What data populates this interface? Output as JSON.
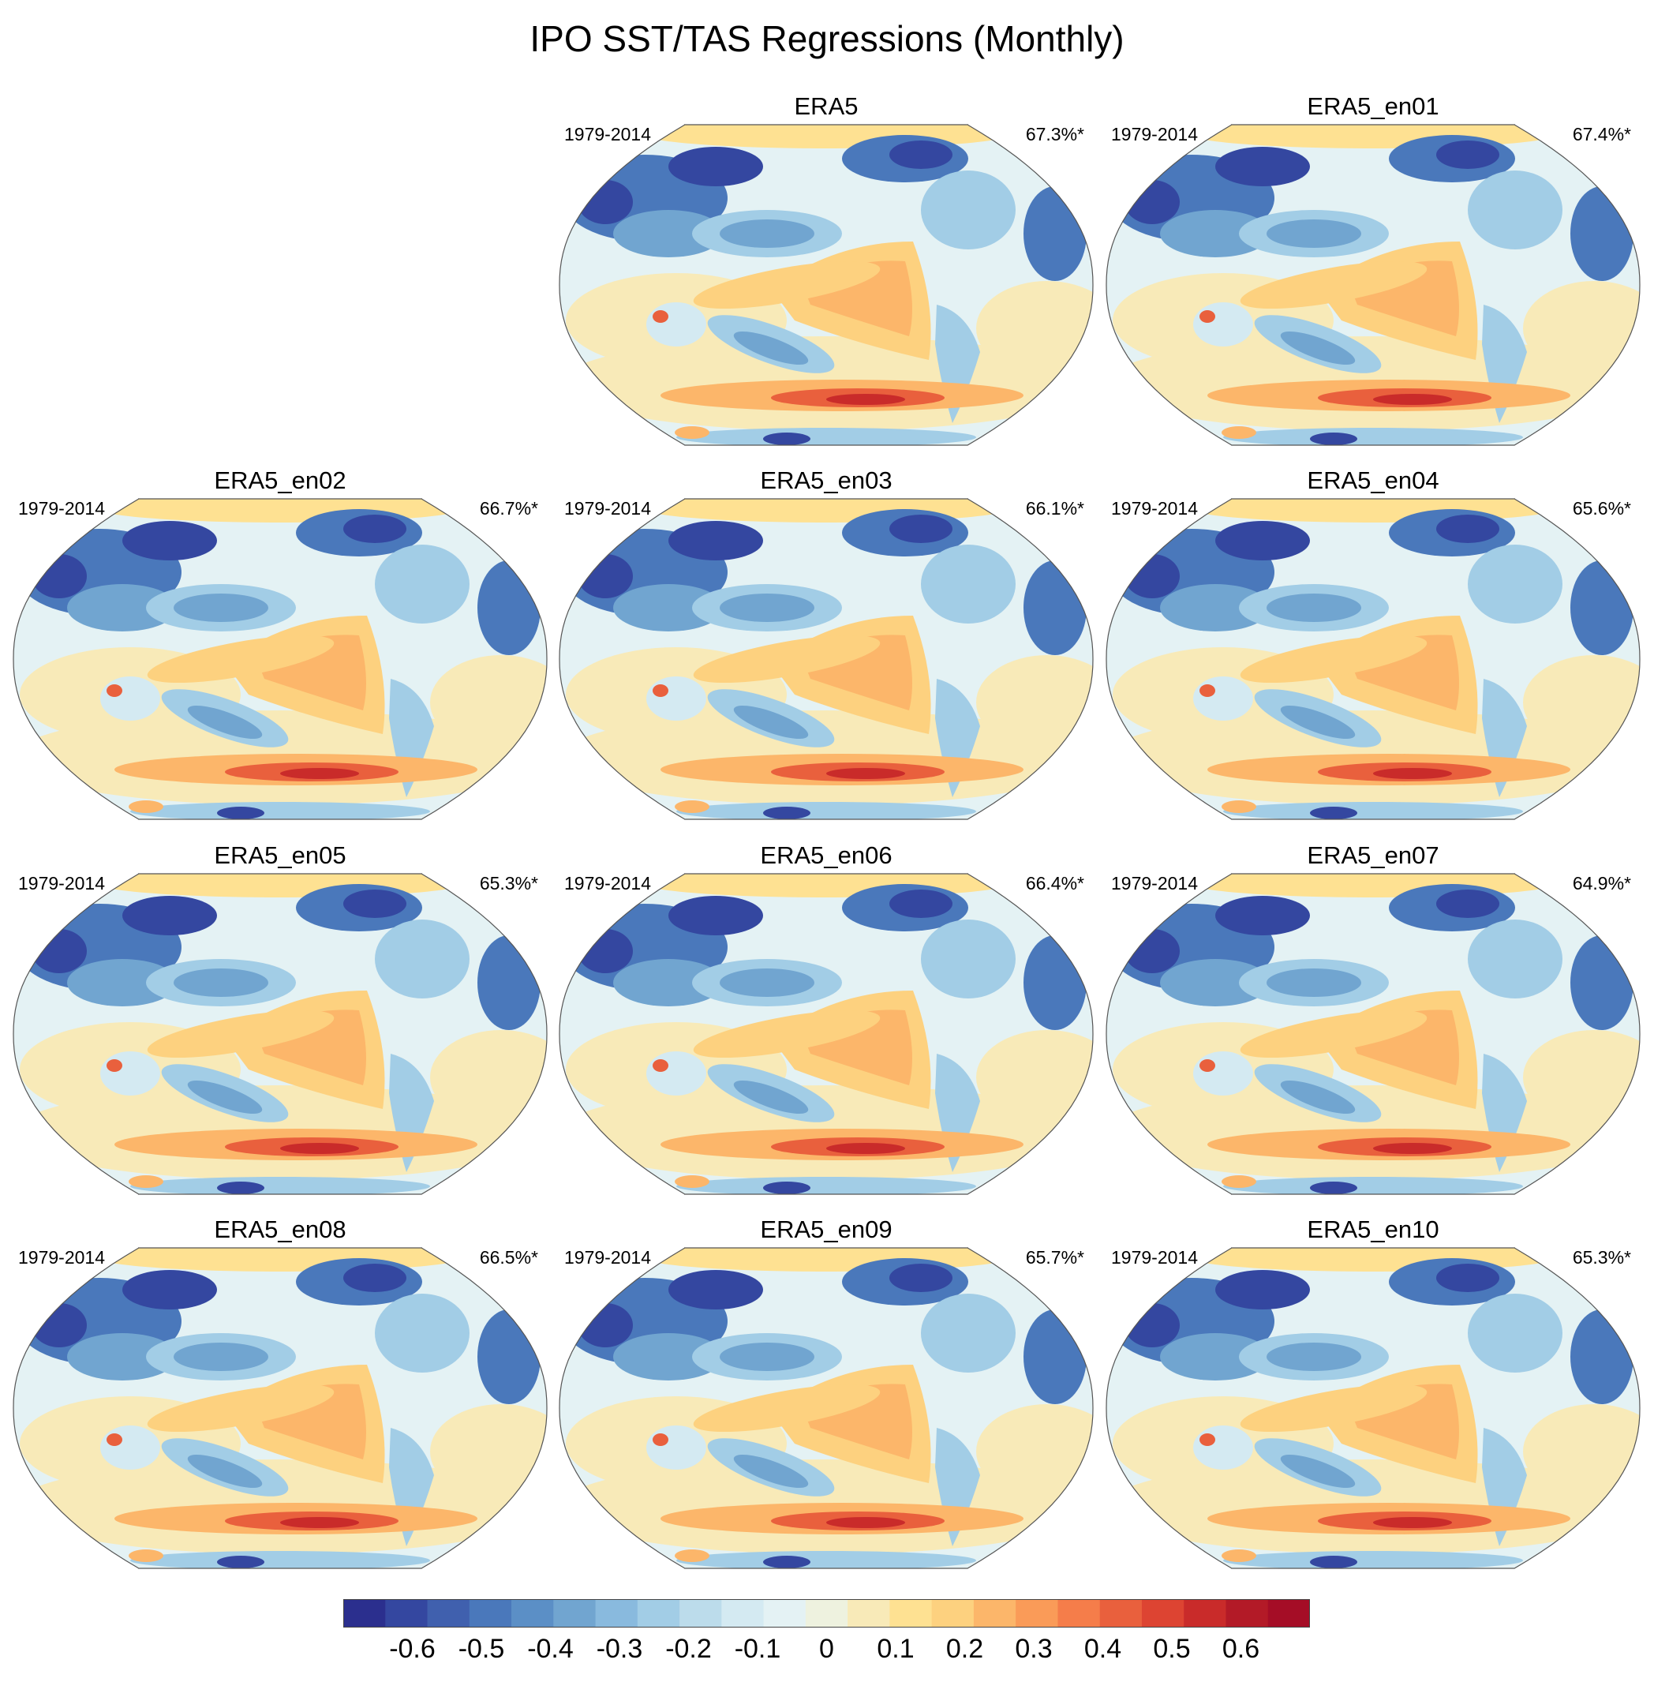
{
  "title": "IPO SST/TAS Regressions (Monthly)",
  "panels": [
    {
      "name": "ERA5",
      "period": "1979-2014",
      "variance": "67.3%*"
    },
    {
      "name": "ERA5_en01",
      "period": "1979-2014",
      "variance": "67.4%*"
    },
    {
      "name": "ERA5_en02",
      "period": "1979-2014",
      "variance": "66.7%*"
    },
    {
      "name": "ERA5_en03",
      "period": "1979-2014",
      "variance": "66.1%*"
    },
    {
      "name": "ERA5_en04",
      "period": "1979-2014",
      "variance": "65.6%*"
    },
    {
      "name": "ERA5_en05",
      "period": "1979-2014",
      "variance": "65.3%*"
    },
    {
      "name": "ERA5_en06",
      "period": "1979-2014",
      "variance": "66.4%*"
    },
    {
      "name": "ERA5_en07",
      "period": "1979-2014",
      "variance": "64.9%*"
    },
    {
      "name": "ERA5_en08",
      "period": "1979-2014",
      "variance": "66.5%*"
    },
    {
      "name": "ERA5_en09",
      "period": "1979-2014",
      "variance": "65.7%*"
    },
    {
      "name": "ERA5_en10",
      "period": "1979-2014",
      "variance": "65.3%*"
    }
  ],
  "chart_data": {
    "type": "heatmap",
    "title": "IPO SST/TAS Regressions (Monthly)",
    "projection": "Robinson, Pacific-centered global map",
    "colorbar": {
      "labels": [
        "-0.6",
        "-0.5",
        "-0.4",
        "-0.3",
        "-0.2",
        "-0.1",
        "0",
        "0.1",
        "0.2",
        "0.3",
        "0.4",
        "0.5",
        "0.6"
      ],
      "colors": [
        "#2b2f8e",
        "#3447a0",
        "#4060ae",
        "#4a78bb",
        "#5b8fc6",
        "#71a5d0",
        "#89bade",
        "#a2cde6",
        "#bcdceb",
        "#d4eaf2",
        "#e4f2f4",
        "#eef2df",
        "#f8eab8",
        "#fee192",
        "#fdd17f",
        "#fcb66a",
        "#fa9b58",
        "#f57d4a",
        "#e9603d",
        "#dd4432",
        "#c92b2a",
        "#b31a27",
        "#a50d26"
      ],
      "range": [
        -0.7,
        0.7
      ]
    },
    "series": [
      {
        "name": "ERA5",
        "variance_explained_pct": 67.3
      },
      {
        "name": "ERA5_en01",
        "variance_explained_pct": 67.4
      },
      {
        "name": "ERA5_en02",
        "variance_explained_pct": 66.7
      },
      {
        "name": "ERA5_en03",
        "variance_explained_pct": 66.1
      },
      {
        "name": "ERA5_en04",
        "variance_explained_pct": 65.6
      },
      {
        "name": "ERA5_en05",
        "variance_explained_pct": 65.3
      },
      {
        "name": "ERA5_en06",
        "variance_explained_pct": 66.4
      },
      {
        "name": "ERA5_en07",
        "variance_explained_pct": 64.9
      },
      {
        "name": "ERA5_en08",
        "variance_explained_pct": 66.5
      },
      {
        "name": "ERA5_en09",
        "variance_explained_pct": 65.7
      },
      {
        "name": "ERA5_en10",
        "variance_explained_pct": 65.3
      }
    ]
  }
}
